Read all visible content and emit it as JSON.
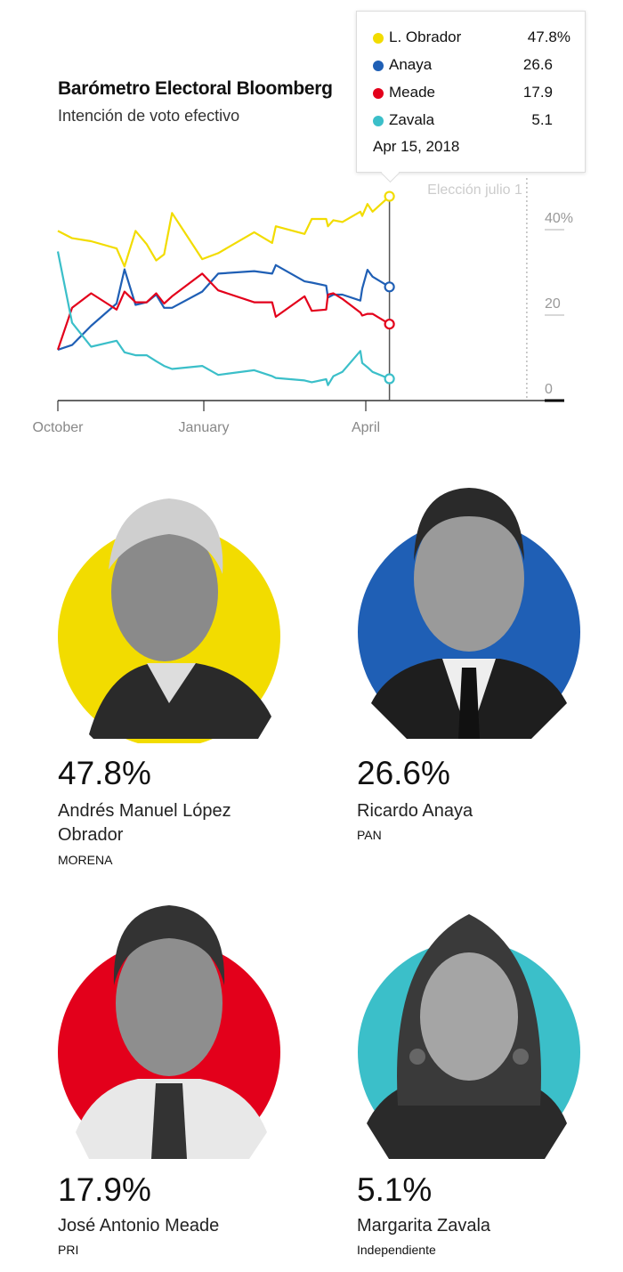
{
  "header": {
    "title": "Barómetro Electoral Bloomberg",
    "subtitle": "Intención de voto efectivo"
  },
  "tooltip": {
    "date": "Apr 15, 2018",
    "rows": [
      {
        "name": "L. Obrador",
        "value": "47.8%",
        "color": "#f2dc00"
      },
      {
        "name": "Anaya",
        "value": "26.6",
        "color": "#1f5fb5"
      },
      {
        "name": "Meade",
        "value": "17.9",
        "color": "#e3001b"
      },
      {
        "name": "Zavala",
        "value": "5.1",
        "color": "#3bbfc9"
      }
    ]
  },
  "chart_data": {
    "type": "line",
    "title": "Barómetro Electoral Bloomberg",
    "subtitle": "Intención de voto efectivo",
    "x_ticks": [
      {
        "label": "October",
        "date": "2017-10-01"
      },
      {
        "label": "January",
        "date": "2018-01-01"
      },
      {
        "label": "April",
        "date": "2018-04-01"
      }
    ],
    "y_ticks": [
      {
        "label": "40%",
        "value": 40
      },
      {
        "label": "20",
        "value": 20
      },
      {
        "label": "0",
        "value": 0
      }
    ],
    "ylim": [
      0,
      50
    ],
    "xlim": [
      "2017-10-01",
      "2018-07-10"
    ],
    "annotation": {
      "label": "Elección julio 1",
      "date": "2018-07-01"
    },
    "hover_date": "2018-04-15",
    "x": [
      "2017-10-01",
      "2017-10-10",
      "2017-10-22",
      "2017-11-07",
      "2017-11-12",
      "2017-11-19",
      "2017-11-26",
      "2017-12-02",
      "2017-12-07",
      "2017-12-12",
      "2017-12-31",
      "2018-01-09",
      "2018-01-29",
      "2018-02-08",
      "2018-02-10",
      "2018-02-26",
      "2018-03-02",
      "2018-03-10",
      "2018-03-11",
      "2018-03-14",
      "2018-03-19",
      "2018-03-29",
      "2018-03-30",
      "2018-04-02",
      "2018-04-05",
      "2018-04-15"
    ],
    "series": [
      {
        "name": "L. Obrador",
        "color": "#f2dc00",
        "values": [
          39.7,
          38.0,
          37.3,
          35.6,
          31.4,
          39.7,
          36.6,
          32.8,
          34.2,
          43.9,
          33.1,
          34.5,
          39.4,
          36.9,
          40.8,
          39.0,
          42.5,
          42.5,
          40.8,
          42.2,
          41.8,
          44.2,
          43.2,
          46.0,
          44.2,
          47.8
        ]
      },
      {
        "name": "Anaya",
        "color": "#1f5fb5",
        "values": [
          11.9,
          13.0,
          17.5,
          22.7,
          30.7,
          22.4,
          23.0,
          24.8,
          21.7,
          21.7,
          25.5,
          29.7,
          30.3,
          29.7,
          31.7,
          27.9,
          27.6,
          26.9,
          24.1,
          24.8,
          24.8,
          23.4,
          26.2,
          30.6,
          29.0,
          26.6
        ]
      },
      {
        "name": "Meade",
        "color": "#e3001b",
        "values": [
          11.9,
          21.7,
          25.1,
          21.3,
          25.5,
          23.0,
          23.0,
          25.1,
          22.7,
          24.4,
          29.7,
          25.8,
          23.0,
          23.0,
          19.6,
          24.4,
          21.0,
          21.3,
          24.8,
          25.1,
          23.8,
          20.6,
          19.9,
          20.3,
          20.3,
          17.9
        ]
      },
      {
        "name": "Zavala",
        "color": "#3bbfc9",
        "values": [
          34.9,
          18.2,
          12.6,
          14.0,
          11.3,
          10.6,
          10.6,
          9.2,
          8.1,
          7.4,
          8.1,
          6.0,
          7.1,
          5.7,
          5.3,
          4.7,
          4.3,
          5.0,
          3.6,
          5.7,
          6.7,
          11.6,
          8.8,
          7.8,
          6.7,
          5.1
        ]
      }
    ]
  },
  "candidates": [
    {
      "pct": "47.8%",
      "name": "Andrés Manuel López Obrador",
      "party": "MORENA",
      "color": "#f2dc00"
    },
    {
      "pct": "26.6%",
      "name": "Ricardo Anaya",
      "party": "PAN",
      "color": "#1f5fb5"
    },
    {
      "pct": "17.9%",
      "name": "José Antonio Meade",
      "party": "PRI",
      "color": "#e3001b"
    },
    {
      "pct": "5.1%",
      "name": "Margarita Zavala",
      "party": "Independiente",
      "color": "#3bbfc9"
    }
  ]
}
